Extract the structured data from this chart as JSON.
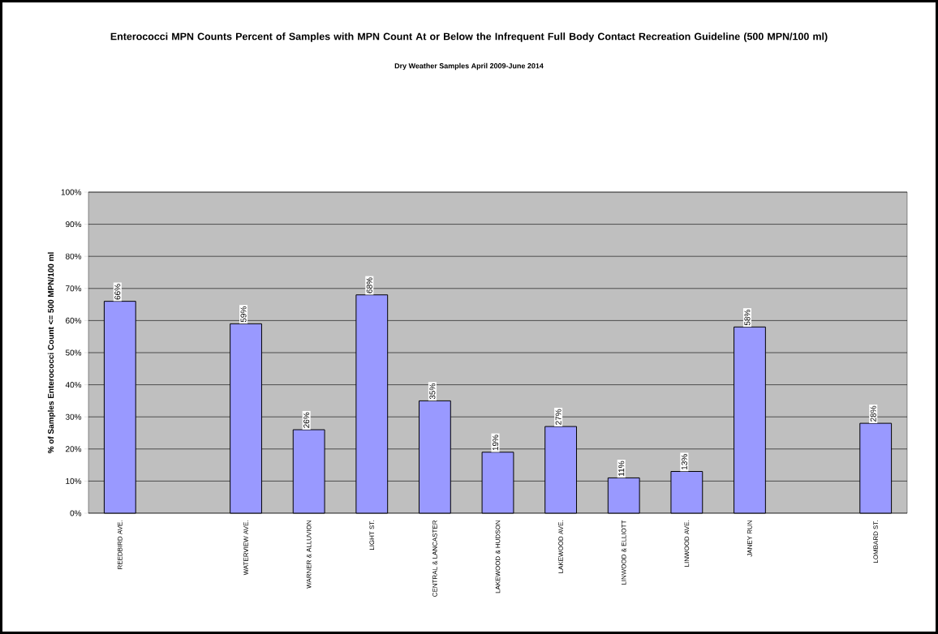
{
  "chart_data": {
    "type": "bar",
    "title": "Enterococci MPN Counts Percent of Samples with MPN Count At or Below the Infrequent Full Body Contact Recreation Guideline (500 MPN/100 ml)",
    "subtitle": "Dry Weather Samples April 2009-June 2014",
    "ylabel": "% of Samples Enterococci Count <= 500 MPN/100 ml",
    "categories": [
      "REEDBIRD AVE.",
      null,
      "WATERVIEW AVE.",
      "WARNER & ALLUVION",
      "LIGHT ST.",
      "CENTRAL & LANCASTER",
      "LAKEWOOD & HUDSON",
      "LAKEWOOD AVE.",
      "LINWOOD & ELLIOTT",
      "LINWOOD AVE.",
      "JANEY RUN",
      null,
      "LOMBARD ST."
    ],
    "values": [
      66,
      null,
      59,
      26,
      68,
      35,
      19,
      27,
      11,
      13,
      58,
      null,
      28
    ],
    "value_labels": [
      "66%",
      null,
      "59%",
      "26%",
      "68%",
      "35%",
      "19%",
      "27%",
      "11%",
      "13%",
      "58%",
      null,
      "28%"
    ],
    "color": "#9999ff",
    "ylim": [
      0,
      100
    ],
    "yticks": [
      {
        "value": 0,
        "label": "0%"
      },
      {
        "value": 10,
        "label": "10%"
      },
      {
        "value": 20,
        "label": "20%"
      },
      {
        "value": 30,
        "label": "30%"
      },
      {
        "value": 40,
        "label": "40%"
      },
      {
        "value": 50,
        "label": "50%"
      },
      {
        "value": 60,
        "label": "60%"
      },
      {
        "value": 70,
        "label": "70%"
      },
      {
        "value": 80,
        "label": "80%"
      },
      {
        "value": 90,
        "label": "90%"
      },
      {
        "value": 100,
        "label": "100%"
      }
    ],
    "grid": "y"
  }
}
